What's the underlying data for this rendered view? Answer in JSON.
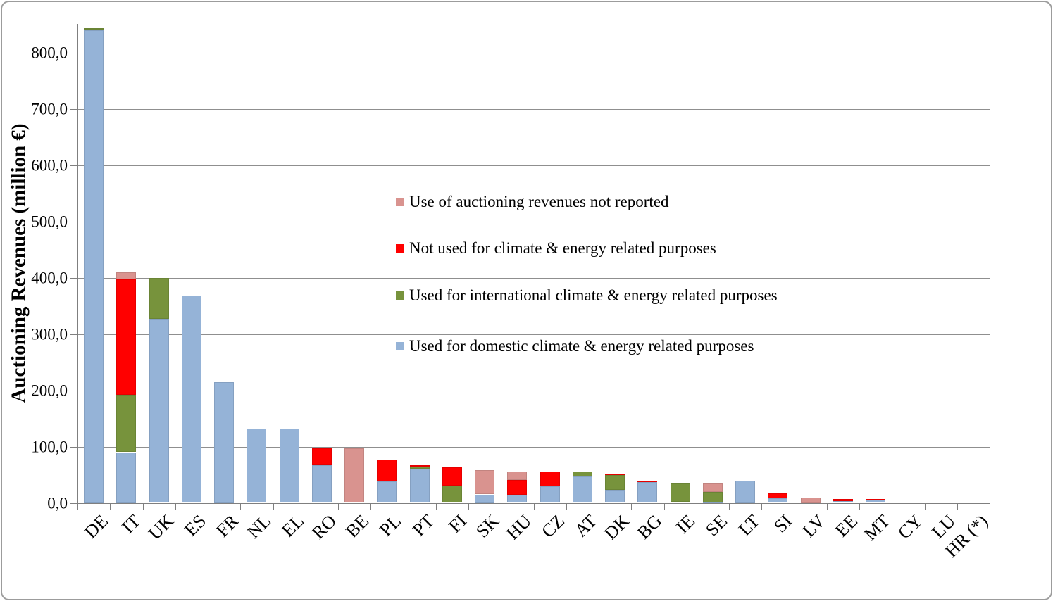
{
  "chart_data": {
    "type": "bar",
    "stacked": true,
    "ylabel": "Auctioning Revenues (million €)",
    "xlabel": "",
    "categories": [
      "DE",
      "IT",
      "UK",
      "ES",
      "FR",
      "NL",
      "EL",
      "RO",
      "BE",
      "PL",
      "PT",
      "FI",
      "SK",
      "HU",
      "CZ",
      "AT",
      "DK",
      "BG",
      "IE",
      "SE",
      "LT",
      "SI",
      "LV",
      "EE",
      "MT",
      "CY",
      "LU",
      "HR (*)"
    ],
    "series": [
      {
        "name": "Used for domestic climate & energy related purposes",
        "color": "#95B3D7",
        "values": [
          840,
          90,
          327,
          368,
          215,
          132,
          132,
          67,
          0,
          38,
          61,
          0,
          15,
          14,
          29,
          47,
          23,
          37,
          2,
          1,
          40,
          8,
          0,
          3,
          6,
          0,
          0,
          0
        ]
      },
      {
        "name": "Used for international climate & energy related purposes",
        "color": "#77933C",
        "values": [
          3,
          102,
          73,
          0,
          0,
          0,
          0,
          0,
          0,
          0,
          3,
          31,
          0,
          0,
          0,
          9,
          26,
          0,
          33,
          18,
          0,
          0,
          0,
          0,
          0,
          0,
          0,
          0
        ]
      },
      {
        "name": "Not used for climate & energy related purposes",
        "color": "#FF0000",
        "values": [
          0,
          205,
          0,
          0,
          0,
          0,
          0,
          30,
          0,
          39,
          3,
          32,
          0,
          27,
          27,
          0,
          2,
          1.5,
          0,
          0,
          0,
          9,
          0,
          4,
          1,
          2,
          2,
          0
        ]
      },
      {
        "name": "Use of auctioning revenues not reported",
        "color": "#D9938F",
        "values": [
          0,
          13,
          0,
          0,
          0,
          0,
          0,
          0,
          97,
          0,
          0,
          0,
          43,
          15,
          0,
          0,
          0,
          0,
          0,
          15,
          0,
          0,
          10,
          0,
          0,
          0,
          0,
          0
        ]
      }
    ],
    "y_axis": {
      "min": 0,
      "max": 850,
      "tick_step": 100,
      "tick_labels": [
        "0,0",
        "100,0",
        "200,0",
        "300,0",
        "400,0",
        "500,0",
        "600,0",
        "700,0",
        "800,0"
      ],
      "grid": true
    },
    "legend": {
      "position": "overlay-center",
      "entries_top_to_bottom": [
        "Use of auctioning revenues not reported",
        "Not used for climate & energy related purposes",
        "Used for international climate & energy related purposes",
        "Used for domestic climate & energy related purposes"
      ]
    },
    "colors": {
      "domestic_blue": "#95B3D7",
      "international_green": "#77933C",
      "not_used_red": "#FF0000",
      "not_reported_pink": "#D9938F",
      "gridline": "#8F8F8F",
      "axis": "#7F7F7F"
    }
  }
}
